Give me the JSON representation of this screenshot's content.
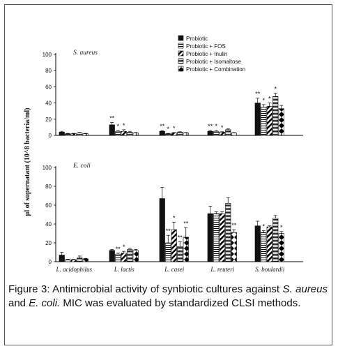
{
  "caption": {
    "figure_label": "Figure 3:",
    "text_1": " Antimicrobial activity of synbiotic cultures against ",
    "organism_1": "S. aureus",
    "text_2": " and ",
    "organism_2": "E. coli.",
    "text_3": " MIC was evaluated by standardized CLSI methods."
  },
  "y_axis_title": "µl of supernatant (10^8 bacteria/ml)",
  "legend": [
    {
      "name": "Probiotic",
      "pattern": "solid"
    },
    {
      "name": "Probiotic + FOS",
      "pattern": "hstripe"
    },
    {
      "name": "Probiotic + Inulin",
      "pattern": "diag"
    },
    {
      "name": "Probiotic + Isomaltose",
      "pattern": "hstripe-dense"
    },
    {
      "name": "Probiotic + Combination",
      "pattern": "diamond"
    }
  ],
  "chart_data": [
    {
      "type": "bar",
      "title": "S. aureus",
      "ylim": [
        0,
        100
      ],
      "yticks": [
        0,
        20,
        40,
        60,
        80,
        100
      ],
      "categories": [
        "L. acidophilus",
        "L. lactis",
        "L. casei",
        "L. reuteri",
        "S. boulardii"
      ],
      "series": [
        {
          "name": "Probiotic",
          "values": [
            4,
            13,
            5,
            5,
            40
          ],
          "errors": [
            1,
            3,
            1,
            1,
            6
          ]
        },
        {
          "name": "Probiotic + FOS",
          "values": [
            2,
            5,
            2,
            5,
            35
          ],
          "errors": [
            0.5,
            1,
            0.5,
            1,
            3
          ]
        },
        {
          "name": "Probiotic + Inulin",
          "values": [
            2,
            5,
            3,
            4,
            36
          ],
          "errors": [
            0.5,
            2,
            0.5,
            0.5,
            4
          ]
        },
        {
          "name": "Probiotic + Isomaltose",
          "values": [
            3,
            4,
            4,
            7,
            48
          ],
          "errors": [
            0.5,
            1,
            0.5,
            1,
            4
          ]
        },
        {
          "name": "Probiotic + Combination",
          "values": [
            2,
            3,
            3,
            3,
            33
          ],
          "errors": [
            0.5,
            0.5,
            0.5,
            0.5,
            4
          ]
        }
      ],
      "significance": [
        [
          "",
          "**",
          "**",
          "**",
          "**"
        ],
        [
          "",
          "*",
          "*",
          "*",
          "*"
        ],
        [
          "",
          "*",
          "*",
          "*",
          "*"
        ],
        [
          "",
          "",
          "",
          "",
          "*"
        ],
        [
          "",
          "",
          "",
          "",
          ""
        ]
      ]
    },
    {
      "type": "bar",
      "title": "E. coli",
      "ylim": [
        0,
        100
      ],
      "yticks": [
        0,
        20,
        40,
        60,
        80,
        100
      ],
      "categories": [
        "L. acidophilus",
        "L. lactis",
        "L. casei",
        "L. reuteri",
        "S. boulardii"
      ],
      "series": [
        {
          "name": "Probiotic",
          "values": [
            7,
            12,
            67,
            51,
            38
          ],
          "errors": [
            3,
            1,
            12,
            8,
            5
          ]
        },
        {
          "name": "Probiotic + FOS",
          "values": [
            2,
            8,
            20,
            51,
            31
          ],
          "errors": [
            0.5,
            1,
            8,
            2,
            2
          ]
        },
        {
          "name": "Probiotic + Inulin",
          "values": [
            2,
            9,
            34,
            51,
            37
          ],
          "errors": [
            0.5,
            2,
            8,
            2,
            1
          ]
        },
        {
          "name": "Probiotic + Isomaltose",
          "values": [
            4,
            13,
            16,
            62,
            46
          ],
          "errors": [
            2,
            1,
            5,
            6,
            3
          ]
        },
        {
          "name": "Probiotic + Combination",
          "values": [
            3,
            12,
            26,
            31,
            30
          ],
          "errors": [
            0.5,
            1,
            10,
            3,
            2
          ]
        }
      ],
      "significance": [
        [
          "",
          "",
          "",
          "",
          ""
        ],
        [
          "",
          "**",
          "**",
          "",
          "*"
        ],
        [
          "",
          "*",
          "*",
          "",
          ""
        ],
        [
          "",
          "",
          "**",
          "",
          ""
        ],
        [
          "",
          "",
          "**",
          "**",
          "*"
        ]
      ]
    }
  ]
}
